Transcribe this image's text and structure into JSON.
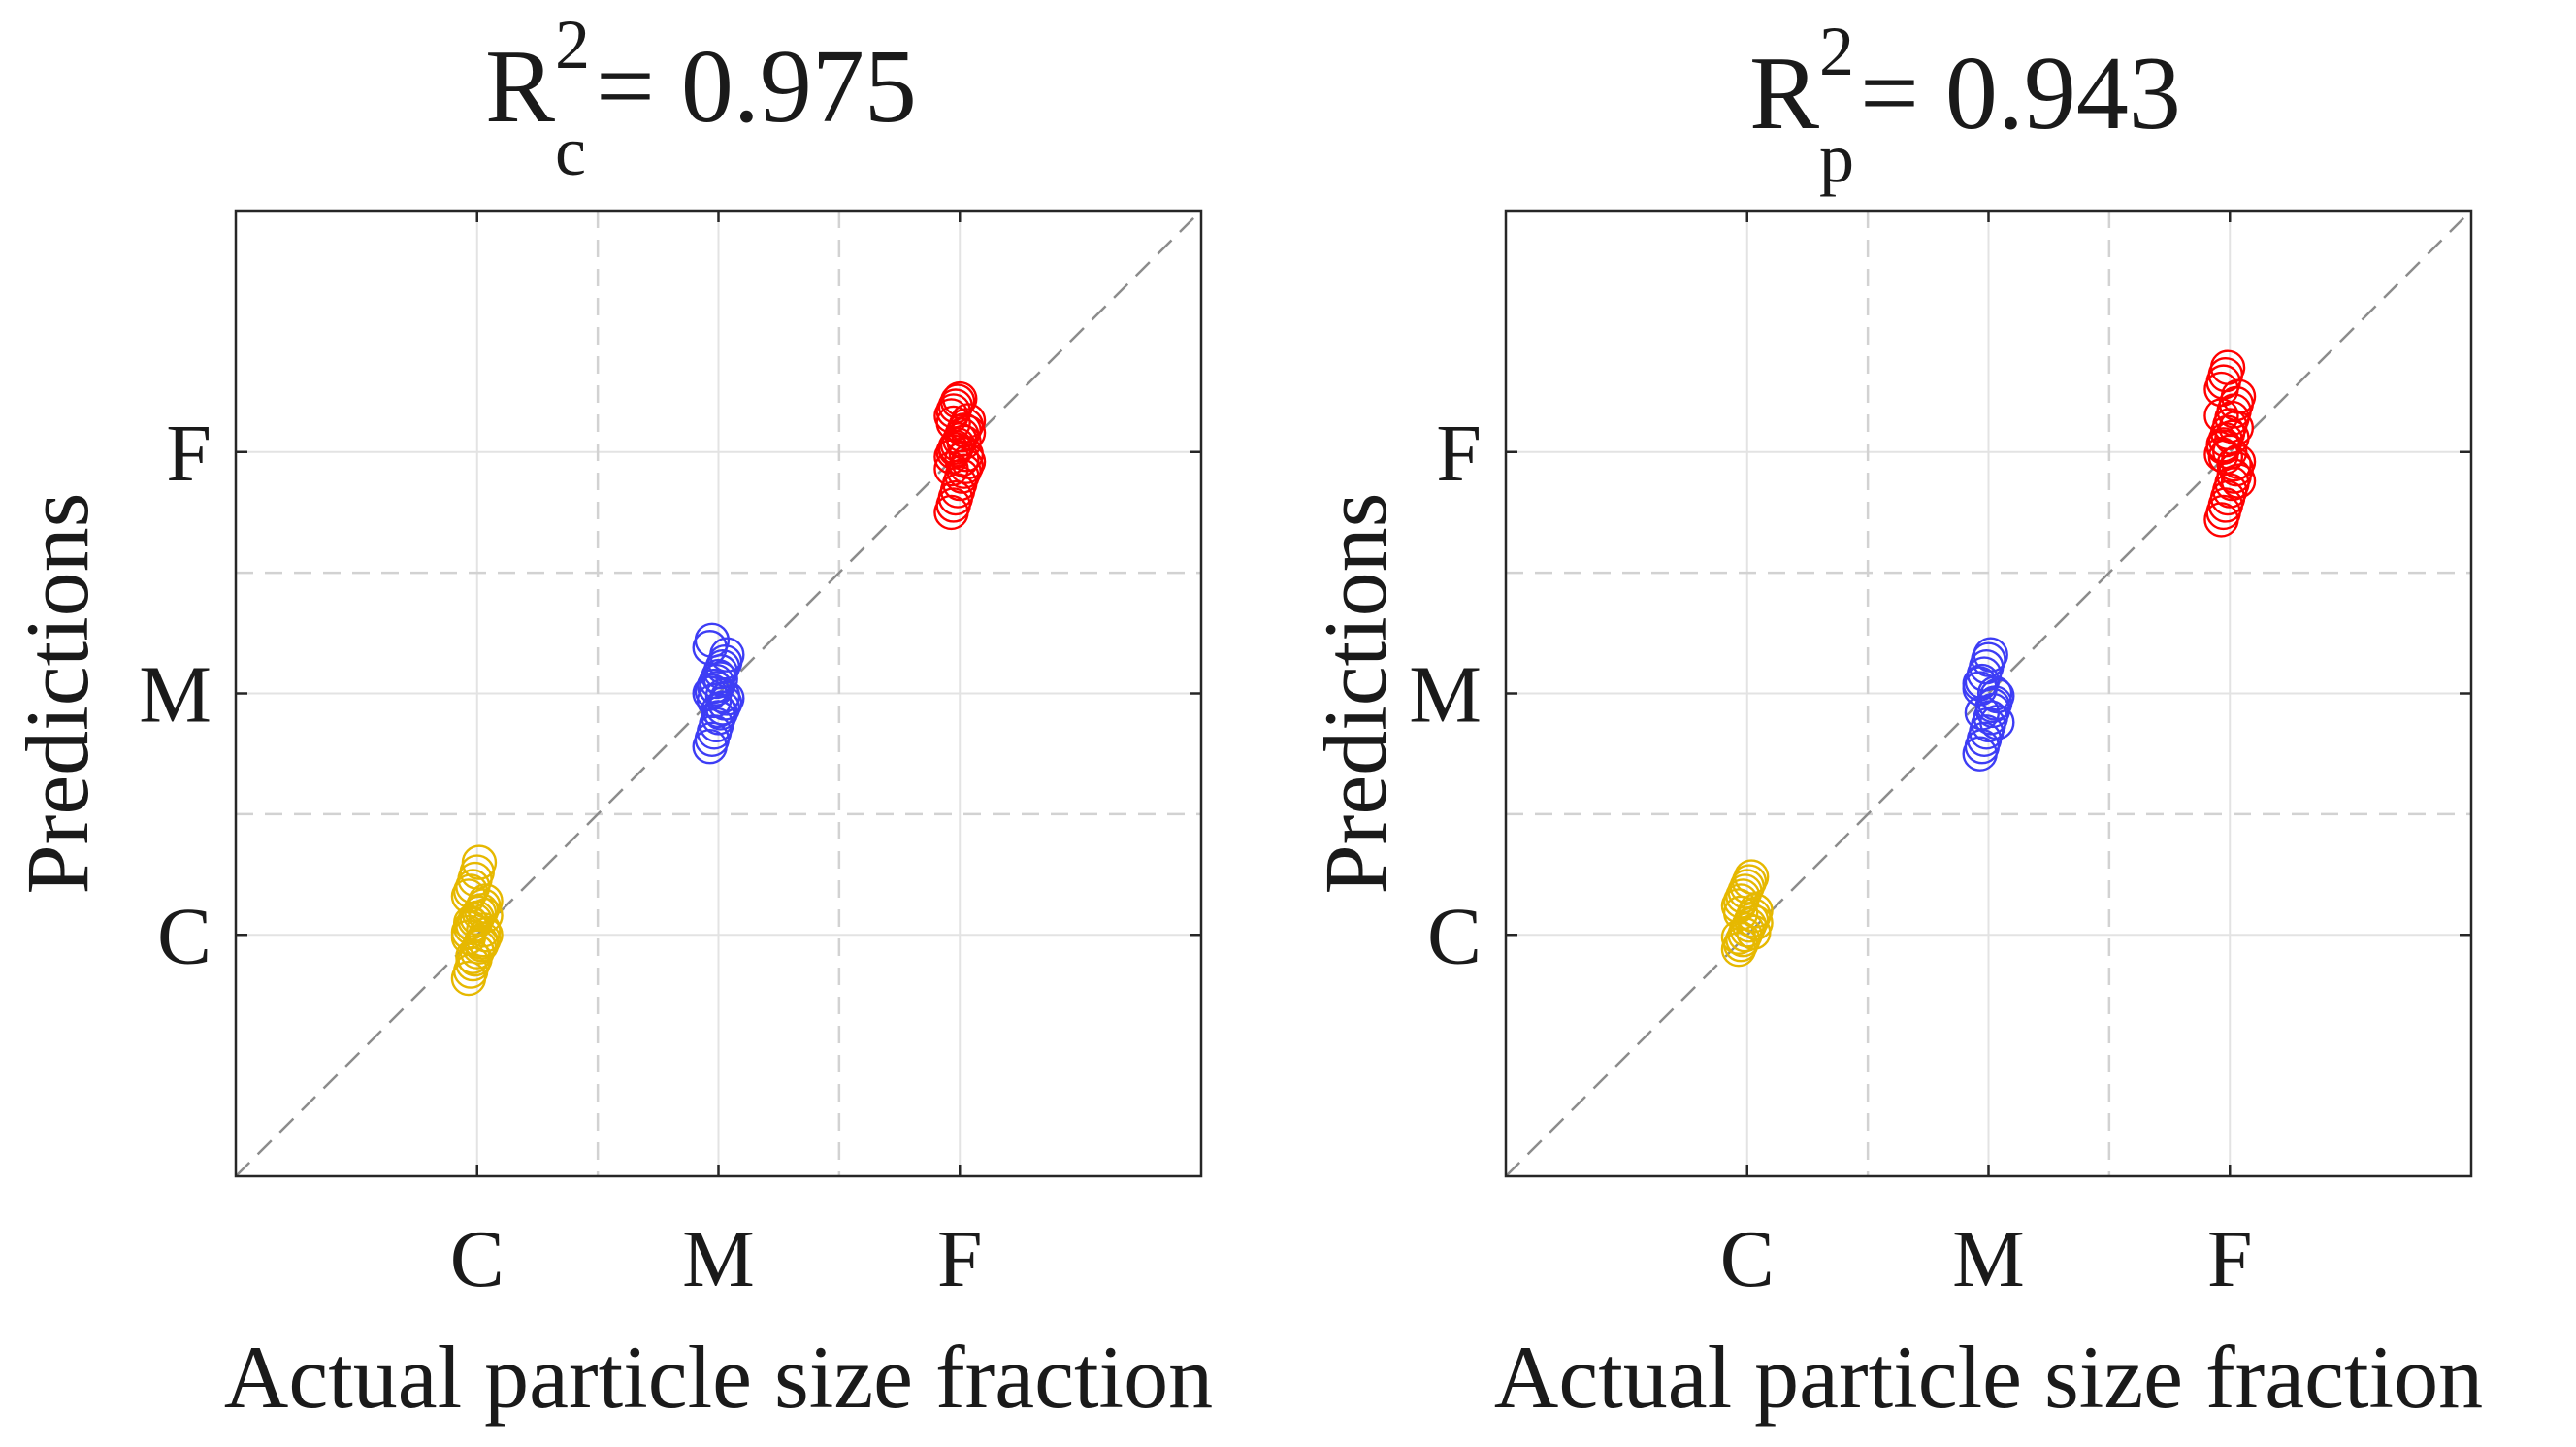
{
  "chart_data": [
    {
      "type": "scatter",
      "title": {
        "base": "R",
        "subscript": "c",
        "superscript": "2",
        "rest": " = 0.975"
      },
      "xlabel": "Actual particle size fraction",
      "ylabel": "Predictions",
      "categories": [
        "C",
        "M",
        "F"
      ],
      "x_ticks": [
        1,
        2,
        3
      ],
      "y_ticks": [
        1,
        2,
        3
      ],
      "xlim": [
        0,
        4
      ],
      "ylim": [
        0,
        4
      ],
      "class_boundaries": [
        1.5,
        2.5
      ],
      "grid": true,
      "identity_line": true,
      "series": [
        {
          "name": "C",
          "color": "#E6B800",
          "x": 1,
          "y": [
            0.82,
            0.85,
            0.88,
            0.9,
            0.93,
            0.95,
            0.97,
            0.98,
            1.0,
            1.01,
            1.03,
            1.04,
            1.06,
            1.07,
            1.09,
            1.1,
            1.12,
            1.14,
            1.16,
            1.18,
            1.2,
            1.23,
            1.26,
            1.3,
            0.96,
            1.02,
            1.08,
            0.99,
            1.05,
            0.91
          ]
        },
        {
          "name": "M",
          "color": "#3D3DF5",
          "x": 2,
          "y": [
            1.78,
            1.81,
            1.84,
            1.87,
            1.9,
            1.92,
            1.94,
            1.96,
            1.98,
            2.0,
            2.01,
            2.03,
            2.05,
            2.07,
            2.09,
            2.11,
            2.13,
            2.16,
            2.19,
            2.22,
            1.97,
            2.02,
            1.93,
            2.06,
            1.99
          ]
        },
        {
          "name": "F",
          "color": "#FF0000",
          "x": 3,
          "y": [
            2.75,
            2.78,
            2.81,
            2.84,
            2.87,
            2.9,
            2.92,
            2.94,
            2.96,
            2.98,
            3.0,
            3.01,
            3.03,
            3.05,
            3.07,
            3.09,
            3.11,
            3.13,
            3.15,
            3.17,
            3.19,
            3.21,
            3.22,
            2.97,
            3.04,
            2.99,
            3.08,
            2.93,
            3.12,
            3.02
          ]
        }
      ]
    },
    {
      "type": "scatter",
      "title": {
        "base": "R",
        "subscript": "p",
        "superscript": "2",
        "rest": " = 0.943"
      },
      "xlabel": "Actual particle size fraction",
      "ylabel": "Predictions",
      "categories": [
        "C",
        "M",
        "F"
      ],
      "x_ticks": [
        1,
        2,
        3
      ],
      "y_ticks": [
        1,
        2,
        3
      ],
      "xlim": [
        0,
        4
      ],
      "ylim": [
        0,
        4
      ],
      "class_boundaries": [
        1.5,
        2.5
      ],
      "grid": true,
      "identity_line": true,
      "series": [
        {
          "name": "C",
          "color": "#E6B800",
          "x": 1,
          "y": [
            0.94,
            0.96,
            0.98,
            1.0,
            1.02,
            1.04,
            1.06,
            1.08,
            1.1,
            1.12,
            1.14,
            1.16,
            1.18,
            1.2,
            1.22,
            1.24,
            1.01,
            1.05,
            0.99,
            1.09
          ]
        },
        {
          "name": "M",
          "color": "#3D3DF5",
          "x": 2,
          "y": [
            1.75,
            1.78,
            1.81,
            1.84,
            1.87,
            1.9,
            1.93,
            1.96,
            1.99,
            2.02,
            2.05,
            2.08,
            2.11,
            2.14,
            2.16,
            1.95,
            2.0,
            1.88,
            2.04,
            1.92
          ]
        },
        {
          "name": "F",
          "color": "#FF0000",
          "x": 3,
          "y": [
            2.72,
            2.75,
            2.78,
            2.81,
            2.84,
            2.87,
            2.9,
            2.93,
            2.96,
            2.99,
            3.02,
            3.05,
            3.08,
            3.11,
            3.14,
            3.17,
            3.2,
            3.23,
            3.26,
            3.29,
            3.32,
            3.35,
            3.0,
            3.06,
            2.95,
            3.1,
            2.88,
            3.15,
            3.03,
            2.98
          ]
        }
      ]
    }
  ]
}
